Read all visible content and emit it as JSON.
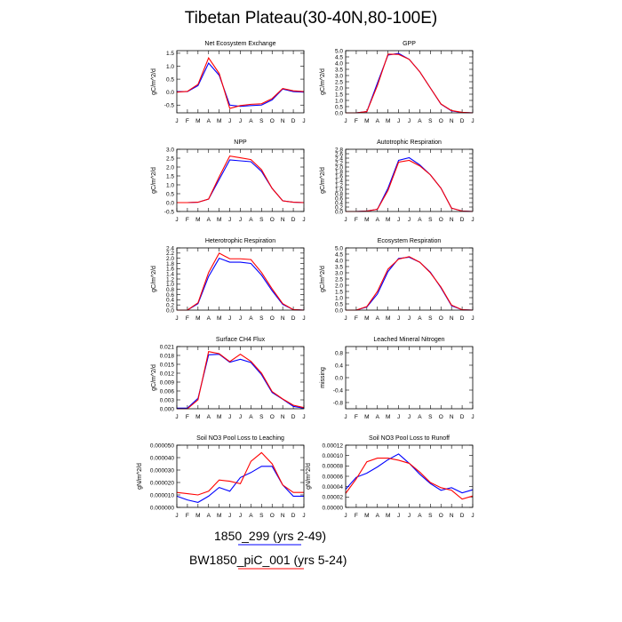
{
  "title": "Tibetan Plateau(30-40N,80-100E)",
  "legend": [
    {
      "label": "1850_299 (yrs 2-49)",
      "color": "#0000ff"
    },
    {
      "label": "BW1850_piC_001 (yrs 5-24)",
      "color": "#ff0000"
    }
  ],
  "colors": {
    "series_a": "#0000ff",
    "series_b": "#ff0000"
  },
  "chart_data": [
    {
      "type": "line",
      "title": "Net Ecosystem Exchange",
      "ylabel": "gC/m^2/d",
      "x": [
        "J",
        "F",
        "M",
        "A",
        "M",
        "J",
        "J",
        "A",
        "S",
        "O",
        "N",
        "D",
        "J"
      ],
      "ylim": [
        -0.8,
        1.6
      ],
      "yticks": [
        "-0.5",
        "0.0",
        "0.5",
        "1.0",
        "1.5"
      ],
      "ytick_values": [
        -0.5,
        0,
        0.5,
        1.0,
        1.5
      ],
      "series": [
        {
          "name": "1850_299 (yrs 2-49)",
          "values": [
            0.02,
            0.02,
            0.25,
            1.12,
            0.65,
            -0.5,
            -0.55,
            -0.52,
            -0.5,
            -0.3,
            0.12,
            0.02,
            0.0
          ]
        },
        {
          "name": "BW1850_piC_001 (yrs 5-24)",
          "values": [
            0.0,
            0.03,
            0.3,
            1.32,
            0.72,
            -0.63,
            -0.52,
            -0.47,
            -0.45,
            -0.25,
            0.14,
            0.05,
            0.02
          ]
        }
      ]
    },
    {
      "type": "line",
      "title": "GPP",
      "ylabel": "gC/m^2/d",
      "x": [
        "J",
        "F",
        "M",
        "A",
        "M",
        "J",
        "J",
        "A",
        "S",
        "O",
        "N",
        "D",
        "J"
      ],
      "ylim": [
        0,
        5.0
      ],
      "yticks": [
        "0.0",
        "0.5",
        "1.0",
        "1.5",
        "2.0",
        "2.5",
        "3.0",
        "3.5",
        "4.0",
        "4.5",
        "5.0"
      ],
      "ytick_values": [
        0,
        0.5,
        1,
        1.5,
        2,
        2.5,
        3,
        3.5,
        4,
        4.5,
        5
      ],
      "series": [
        {
          "name": "1850_299 (yrs 2-49)",
          "values": [
            0.0,
            0.0,
            0.1,
            2.4,
            4.65,
            4.78,
            4.3,
            3.3,
            2.0,
            0.7,
            0.15,
            0.03,
            0.0
          ]
        },
        {
          "name": "BW1850_piC_001 (yrs 5-24)",
          "values": [
            0.0,
            0.0,
            0.1,
            2.2,
            4.72,
            4.7,
            4.3,
            3.3,
            2.0,
            0.72,
            0.18,
            0.04,
            0.0
          ]
        }
      ]
    },
    {
      "type": "line",
      "title": "NPP",
      "ylabel": "gC/m^2/d",
      "x": [
        "J",
        "F",
        "M",
        "A",
        "M",
        "J",
        "J",
        "A",
        "S",
        "O",
        "N",
        "D",
        "J"
      ],
      "ylim": [
        -0.5,
        3.0
      ],
      "yticks": [
        "-0.5",
        "0.0",
        "0.5",
        "1.0",
        "1.5",
        "2.0",
        "2.5",
        "3.0"
      ],
      "ytick_values": [
        -0.5,
        0,
        0.5,
        1,
        1.5,
        2,
        2.5,
        3
      ],
      "series": [
        {
          "name": "1850_299 (yrs 2-49)",
          "values": [
            0.0,
            0.0,
            0.02,
            0.2,
            1.3,
            2.4,
            2.35,
            2.3,
            1.75,
            0.8,
            0.1,
            0.02,
            0.0
          ]
        },
        {
          "name": "BW1850_piC_001 (yrs 5-24)",
          "values": [
            0.0,
            0.0,
            0.02,
            0.2,
            1.45,
            2.62,
            2.52,
            2.42,
            1.85,
            0.8,
            0.1,
            0.02,
            0.0
          ]
        }
      ]
    },
    {
      "type": "line",
      "title": "Autotrophic Respiration",
      "ylabel": "gC/m^2/d",
      "x": [
        "J",
        "F",
        "M",
        "A",
        "M",
        "J",
        "J",
        "A",
        "S",
        "O",
        "N",
        "D",
        "J"
      ],
      "ylim": [
        0,
        2.8
      ],
      "yticks": [
        "0.0",
        "0.2",
        "0.4",
        "0.6",
        "0.8",
        "1.0",
        "1.2",
        "1.4",
        "1.6",
        "1.8",
        "2.0",
        "2.2",
        "2.4",
        "2.6",
        "2.8"
      ],
      "ytick_values": [
        0,
        0.2,
        0.4,
        0.6,
        0.8,
        1.0,
        1.2,
        1.4,
        1.6,
        1.8,
        2.0,
        2.2,
        2.4,
        2.6,
        2.8
      ],
      "series": [
        {
          "name": "1850_299 (yrs 2-49)",
          "values": [
            0.0,
            0.0,
            0.02,
            0.1,
            1.05,
            2.3,
            2.42,
            2.1,
            1.65,
            1.05,
            0.15,
            0.02,
            0.0
          ]
        },
        {
          "name": "BW1850_piC_001 (yrs 5-24)",
          "values": [
            0.0,
            0.0,
            0.02,
            0.1,
            0.95,
            2.22,
            2.3,
            2.05,
            1.65,
            1.05,
            0.15,
            0.02,
            0.0
          ]
        }
      ]
    },
    {
      "type": "line",
      "title": "Heterotrophic Respiration",
      "ylabel": "gC/m^2/d",
      "x": [
        "J",
        "F",
        "M",
        "A",
        "M",
        "J",
        "J",
        "A",
        "S",
        "O",
        "N",
        "D",
        "J"
      ],
      "ylim": [
        0,
        2.4
      ],
      "yticks": [
        "0.0",
        "0.2",
        "0.4",
        "0.6",
        "0.8",
        "1.0",
        "1.2",
        "1.4",
        "1.6",
        "1.8",
        "2.0",
        "2.2",
        "2.4"
      ],
      "ytick_values": [
        0,
        0.2,
        0.4,
        0.6,
        0.8,
        1.0,
        1.2,
        1.4,
        1.6,
        1.8,
        2.0,
        2.2,
        2.4
      ],
      "series": [
        {
          "name": "1850_299 (yrs 2-49)",
          "values": [
            0.0,
            0.0,
            0.25,
            1.3,
            2.0,
            1.85,
            1.85,
            1.8,
            1.35,
            0.75,
            0.22,
            0.02,
            0.0
          ]
        },
        {
          "name": "BW1850_piC_001 (yrs 5-24)",
          "values": [
            0.0,
            0.0,
            0.28,
            1.45,
            2.2,
            1.98,
            1.98,
            1.95,
            1.45,
            0.82,
            0.25,
            0.02,
            0.0
          ]
        }
      ]
    },
    {
      "type": "line",
      "title": "Ecosystem Respiration",
      "ylabel": "gC/m^2/d",
      "x": [
        "J",
        "F",
        "M",
        "A",
        "M",
        "J",
        "J",
        "A",
        "S",
        "O",
        "N",
        "D",
        "J"
      ],
      "ylim": [
        0,
        5.0
      ],
      "yticks": [
        "0.0",
        "0.5",
        "1.0",
        "1.5",
        "2.0",
        "2.5",
        "3.0",
        "3.5",
        "4.0",
        "4.5",
        "5.0"
      ],
      "ytick_values": [
        0,
        0.5,
        1,
        1.5,
        2,
        2.5,
        3,
        3.5,
        4,
        4.5,
        5
      ],
      "series": [
        {
          "name": "1850_299 (yrs 2-49)",
          "values": [
            0.0,
            0.0,
            0.25,
            1.3,
            3.1,
            4.15,
            4.25,
            3.85,
            3.05,
            1.8,
            0.35,
            0.03,
            0.0
          ]
        },
        {
          "name": "BW1850_piC_001 (yrs 5-24)",
          "values": [
            0.0,
            0.0,
            0.28,
            1.5,
            3.3,
            4.1,
            4.3,
            3.85,
            3.0,
            1.85,
            0.4,
            0.03,
            0.0
          ]
        }
      ]
    },
    {
      "type": "line",
      "title": "Surface CH4 Flux",
      "ylabel": "gC/m^2/d",
      "x": [
        "J",
        "F",
        "M",
        "A",
        "M",
        "J",
        "J",
        "A",
        "S",
        "O",
        "N",
        "D",
        "J"
      ],
      "ylim": [
        0,
        0.021
      ],
      "yticks": [
        "0.000",
        "0.003",
        "0.006",
        "0.009",
        "0.012",
        "0.015",
        "0.018",
        "0.021"
      ],
      "ytick_values": [
        0,
        0.003,
        0.006,
        0.009,
        0.012,
        0.015,
        0.018,
        0.021
      ],
      "series": [
        {
          "name": "1850_299 (yrs 2-49)",
          "values": [
            0.0002,
            0.0002,
            0.0035,
            0.0182,
            0.0184,
            0.0157,
            0.0167,
            0.0156,
            0.0115,
            0.0055,
            0.0032,
            0.0008,
            0.0002
          ]
        },
        {
          "name": "BW1850_piC_001 (yrs 5-24)",
          "values": [
            0.0,
            0.0,
            0.003,
            0.0193,
            0.0186,
            0.0159,
            0.0184,
            0.016,
            0.012,
            0.0058,
            0.0033,
            0.0012,
            0.0004
          ]
        }
      ]
    },
    {
      "type": "line",
      "title": "Leached Mineral Nitrogen",
      "ylabel": "missing",
      "x": [
        "J",
        "F",
        "M",
        "A",
        "M",
        "J",
        "J",
        "A",
        "S",
        "O",
        "N",
        "D",
        "J"
      ],
      "ylim": [
        -1.0,
        1.0
      ],
      "yticks": [
        "-0.8",
        "-0.4",
        "0.0",
        "0.4",
        "0.8"
      ],
      "ytick_values": [
        -0.8,
        -0.4,
        0,
        0.4,
        0.8
      ],
      "series": []
    },
    {
      "type": "line",
      "title": "Soil NO3 Pool Loss to Leaching",
      "ylabel": "gN/m^2/d",
      "x": [
        "J",
        "F",
        "M",
        "A",
        "M",
        "J",
        "J",
        "A",
        "S",
        "O",
        "N",
        "D",
        "J"
      ],
      "ylim": [
        0,
        5e-05
      ],
      "yticks": [
        "0.000000",
        "0.000010",
        "0.000020",
        "0.000030",
        "0.000040",
        "0.000050"
      ],
      "ytick_values": [
        0,
        1e-05,
        2e-05,
        3e-05,
        4e-05,
        5e-05
      ],
      "series": [
        {
          "name": "1850_299 (yrs 2-49)",
          "values": [
            9e-06,
            6e-06,
            4e-06,
            9e-06,
            1.6e-05,
            1.3e-05,
            2.4e-05,
            2.8e-05,
            3.3e-05,
            3.3e-05,
            1.8e-05,
            9e-06,
            9e-06
          ]
        },
        {
          "name": "BW1850_piC_001 (yrs 5-24)",
          "values": [
            1.2e-05,
            1.1e-05,
            1e-05,
            1.3e-05,
            2.2e-05,
            2.1e-05,
            1.9e-05,
            3.7e-05,
            4.4e-05,
            3.5e-05,
            1.8e-05,
            1.2e-05,
            1.2e-05
          ]
        }
      ]
    },
    {
      "type": "line",
      "title": "Soil NO3 Pool Loss to Runoff",
      "ylabel": "gN/m^2/d",
      "x": [
        "J",
        "F",
        "M",
        "A",
        "M",
        "J",
        "J",
        "A",
        "S",
        "O",
        "N",
        "D",
        "J"
      ],
      "ylim": [
        0,
        0.00012
      ],
      "yticks": [
        "0.00000",
        "0.00002",
        "0.00004",
        "0.00006",
        "0.00008",
        "0.00010",
        "0.00012"
      ],
      "ytick_values": [
        0,
        2e-05,
        4e-05,
        6e-05,
        8e-05,
        0.0001,
        0.00012
      ],
      "series": [
        {
          "name": "1850_299 (yrs 2-49)",
          "values": [
            3.5e-05,
            5.8e-05,
            6.6e-05,
            7.8e-05,
            9.2e-05,
            0.000103,
            8.5e-05,
            6.4e-05,
            4.6e-05,
            3.3e-05,
            3.8e-05,
            2.8e-05,
            3.4e-05
          ]
        },
        {
          "name": "BW1850_piC_001 (yrs 5-24)",
          "values": [
            2.7e-05,
            5.5e-05,
            8.8e-05,
            9.5e-05,
            9.5e-05,
            9.1e-05,
            8.5e-05,
            6.8e-05,
            4.8e-05,
            3.8e-05,
            3.3e-05,
            1.6e-05,
            2.2e-05
          ]
        }
      ]
    }
  ]
}
